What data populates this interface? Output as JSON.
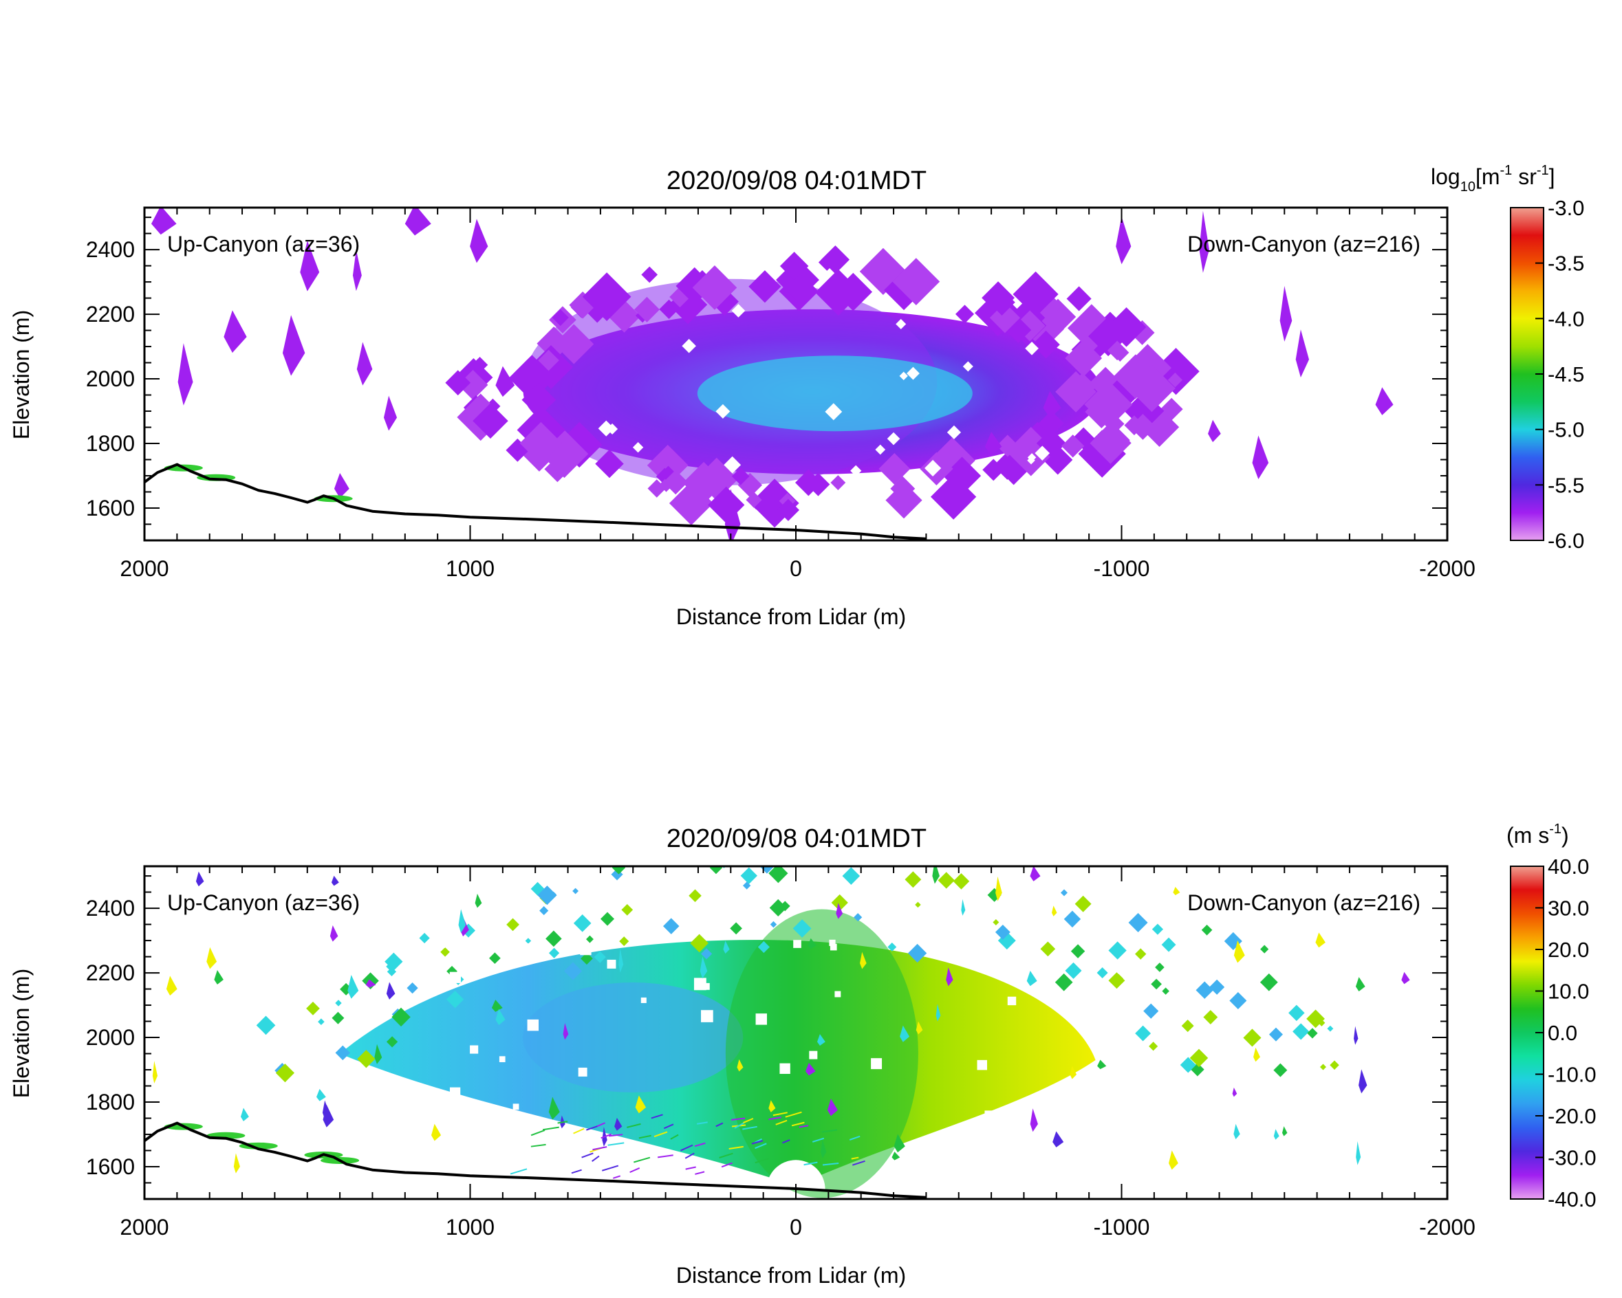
{
  "colors": {
    "terrain_line": "#000000",
    "terrain_fill": "#33cc33",
    "backscatter_scale": [
      "#e6a0f0",
      "#a020f0",
      "#5028e0",
      "#3060f0",
      "#20d0e0",
      "#10c860",
      "#20c020",
      "#a0e000",
      "#f0f000",
      "#f8b000",
      "#f05000",
      "#e01010",
      "#f0a090"
    ],
    "velocity_scale": [
      "#e6a0f0",
      "#a020f0",
      "#5028e0",
      "#3060f0",
      "#30a0f0",
      "#20d0e0",
      "#10e0a0",
      "#10c860",
      "#20c020",
      "#80d800",
      "#f0f000",
      "#f8a000",
      "#f05000",
      "#e01010",
      "#f0a090"
    ]
  },
  "chart_data": [
    {
      "type": "heatmap",
      "title": "2020/09/08 04:01MDT",
      "xlabel": "Distance from Lidar (m)",
      "ylabel": "Elevation (m)",
      "xlim": [
        2000,
        -2000
      ],
      "ylim": [
        1500,
        2530
      ],
      "x_ticks": [
        2000,
        1000,
        0,
        -1000,
        -2000
      ],
      "x_tick_labels": [
        "2000",
        "1000",
        "0",
        "-1000",
        "-2000"
      ],
      "y_ticks": [
        1600,
        1800,
        2000,
        2200,
        2400
      ],
      "y_tick_labels": [
        "1600",
        "1800",
        "2000",
        "2200",
        "2400"
      ],
      "left_annotation": "Up-Canyon (az=36)",
      "right_annotation": "Down-Canyon (az=216)",
      "colorbar": {
        "label_base": "log",
        "label_sub": "10",
        "label_units": "[m",
        "label_exp1": "-1",
        "label_mid": " sr",
        "label_exp2": "-1",
        "label_end": "]",
        "min": -6.0,
        "max": -3.0,
        "ticks": [
          -3.0,
          -3.5,
          -4.0,
          -4.5,
          -5.0,
          -5.5,
          -6.0
        ],
        "tick_labels": [
          "-3.0",
          "-3.5",
          "-4.0",
          "-4.5",
          "-5.0",
          "-5.5",
          "-6.0"
        ]
      },
      "field_center": {
        "x": -100,
        "y": 1950
      },
      "field_value_center": -5.0,
      "field_value_edge": -5.9
    },
    {
      "type": "heatmap",
      "title": "2020/09/08 04:01MDT",
      "xlabel": "Distance from Lidar (m)",
      "ylabel": "Elevation (m)",
      "xlim": [
        2000,
        -2000
      ],
      "ylim": [
        1500,
        2530
      ],
      "x_ticks": [
        2000,
        1000,
        0,
        -1000,
        -2000
      ],
      "x_tick_labels": [
        "2000",
        "1000",
        "0",
        "-1000",
        "-2000"
      ],
      "y_ticks": [
        1600,
        1800,
        2000,
        2200,
        2400
      ],
      "y_tick_labels": [
        "1600",
        "1800",
        "2000",
        "2200",
        "2400"
      ],
      "left_annotation": "Up-Canyon (az=36)",
      "right_annotation": "Down-Canyon (az=216)",
      "colorbar": {
        "label": "(m s",
        "label_exp": "-1",
        "label_end": ")",
        "min": -40.0,
        "max": 40.0,
        "ticks": [
          40.0,
          30.0,
          20.0,
          10.0,
          0.0,
          -10.0,
          -20.0,
          -30.0,
          -40.0
        ],
        "tick_labels": [
          "40.0",
          "30.0",
          "20.0",
          "10.0",
          "0.0",
          "-10.0",
          "-20.0",
          "-30.0",
          "-40.0"
        ]
      },
      "field_velocity_upcanyon": -15,
      "field_velocity_center": 0,
      "field_velocity_downcanyon": 10
    }
  ],
  "terrain": {
    "x": [
      2000,
      1960,
      1900,
      1860,
      1800,
      1750,
      1700,
      1650,
      1600,
      1550,
      1500,
      1480,
      1450,
      1420,
      1380,
      1300,
      1200,
      1100,
      1000,
      800,
      600,
      400,
      200,
      0,
      -200,
      -300,
      -400
    ],
    "y": [
      1680,
      1710,
      1735,
      1715,
      1690,
      1688,
      1675,
      1655,
      1645,
      1632,
      1618,
      1625,
      1638,
      1630,
      1608,
      1590,
      1582,
      1578,
      1572,
      1565,
      1557,
      1548,
      1540,
      1532,
      1520,
      1510,
      1505
    ]
  }
}
